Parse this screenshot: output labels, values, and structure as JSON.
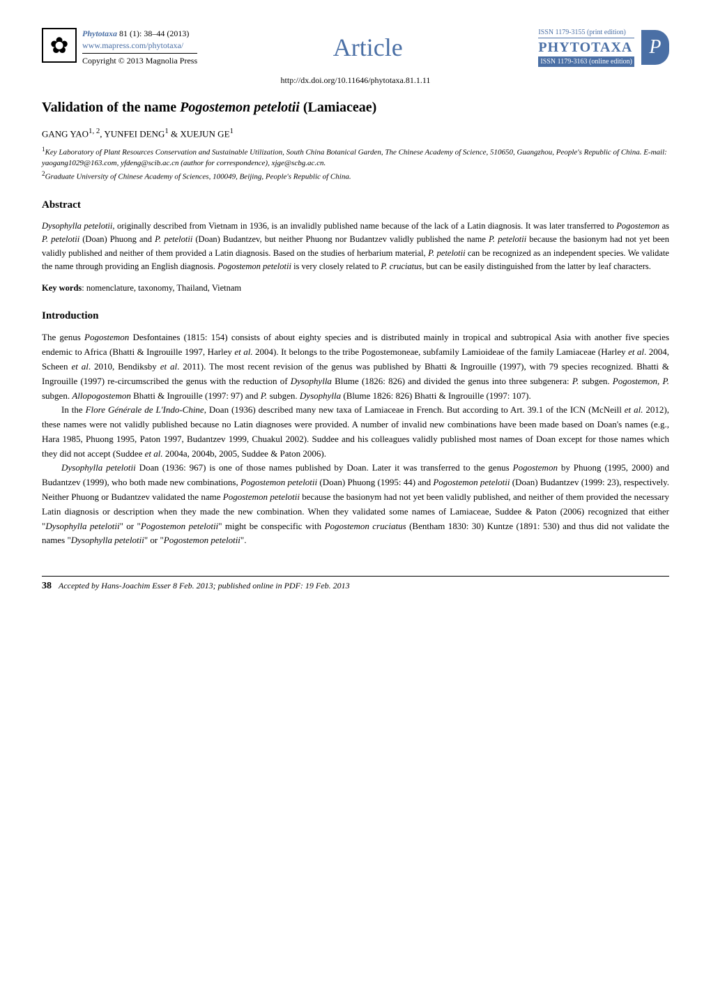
{
  "header": {
    "journal_name": "Phytotaxa",
    "issue_ref": "81 (1): 38–44 (2013)",
    "url": "www.mapress.com/phytotaxa/",
    "copyright": "Copyright © 2013 Magnolia Press",
    "article_label": "Article",
    "issn_print": "ISSN 1179-3155 (print edition)",
    "brand": "PHYTOTAXA",
    "issn_online": "ISSN 1179-3163 (online edition)",
    "doi": "http://dx.doi.org/10.11646/phytotaxa.81.1.11"
  },
  "title": {
    "prefix": "Validation of the name ",
    "species": "Pogostemon petelotii",
    "suffix": " (Lamiaceae)"
  },
  "authors": "GANG YAO1, 2, YUNFEI DENG1 & XUEJUN GE1",
  "affiliations": {
    "aff1": "1Key Laboratory of Plant Resources Conservation and Sustainable Utilization, South China Botanical Garden, The Chinese Academy of Science, 510650, Guangzhou, People's Republic of China. E-mail: yaogang1029@163.com, yfdeng@scib.ac.cn (author for correspondence), xjge@scbg.ac.cn.",
    "aff2": "2Graduate University of Chinese Academy of Sciences, 100049, Beijing, People's Republic of China."
  },
  "abstract": {
    "heading": "Abstract",
    "text_html": "<span class=\"species\">Dysophylla petelotii</span>, originally described from Vietnam in 1936, is an invalidly published name because of the lack of a Latin diagnosis. It was later transferred to <span class=\"species\">Pogostemon</span> as <span class=\"species\">P. petelotii</span> (Doan) Phuong and <span class=\"species\">P. petelotii</span> (Doan) Budantzev, but neither Phuong nor Budantzev validly published the name <span class=\"species\">P. petelotii</span> because the basionym had not yet been validly published and neither of them provided a Latin diagnosis. Based on the studies of herbarium material, <span class=\"species\">P. petelotii</span> can be recognized as an independent species. We validate the name through providing an English diagnosis. <span class=\"species\">Pogostemon petelotii</span> is very closely related to <span class=\"species\">P. cruciatus</span>, but can be easily distinguished from the latter by leaf characters.",
    "keywords_label": "Key words",
    "keywords_text": ": nomenclature, taxonomy, Thailand, Vietnam"
  },
  "introduction": {
    "heading": "Introduction",
    "para1_html": "The genus <span class=\"species\">Pogostemon</span> Desfontaines (1815: 154) consists of about eighty species and is distributed mainly in tropical and subtropical Asia with another five species endemic to Africa (Bhatti & Ingrouille 1997, Harley <span class=\"species\">et al.</span> 2004). It belongs to the tribe Pogostemoneae, subfamily Lamioideae of the family Lamiaceae (Harley <span class=\"species\">et al</span>. 2004, Scheen <span class=\"species\">et al</span>. 2010, Bendiksby <span class=\"species\">et al</span>. 2011). The most recent revision of the genus was published by Bhatti & Ingrouille (1997), with 79 species recognized. Bhatti & Ingrouille (1997) re-circumscribed the genus with the reduction of <span class=\"species\">Dysophylla</span> Blume (1826: 826) and divided the genus into three subgenera: <span class=\"species\">P.</span> subgen. <span class=\"species\">Pogostemon</span>, <span class=\"species\">P.</span> subgen. <span class=\"species\">Allopogostemon</span> Bhatti & Ingrouille (1997: 97) and <span class=\"species\">P.</span> subgen. <span class=\"species\">Dysophylla</span> (Blume 1826: 826) Bhatti & Ingrouille (1997: 107).",
    "para2_html": "In the <span class=\"species\">Flore Générale de L'Indo-Chine</span>, Doan (1936) described many new taxa of Lamiaceae in French. But according to Art. 39.1 of the ICN (McNeill <span class=\"species\">et al.</span> 2012), these names were not validly published because no Latin diagnoses were provided. A number of invalid new combinations have been made based on Doan's names (e.g., Hara 1985, Phuong 1995, Paton 1997, Budantzev 1999, Chuakul 2002). Suddee and his colleagues validly published most names of Doan except for those names which they did not accept (Suddee <span class=\"species\">et al.</span> 2004a, 2004b, 2005, Suddee & Paton 2006).",
    "para3_html": "<span class=\"species\">Dysophylla petelotii</span> Doan (1936: 967) is one of those names published by Doan. Later it was transferred to the genus <span class=\"species\">Pogostemon</span> by Phuong (1995, 2000) and Budantzev (1999), who both made new combinations, <span class=\"species\">Pogostemon petelotii</span> (Doan) Phuong (1995: 44) and <span class=\"species\">Pogostemon petelotii</span> (Doan) Budantzev (1999: 23), respectively. Neither Phuong or Budantzev validated the name <span class=\"species\">Pogostemon petelotii</span> because the basionym had not yet been validly published, and neither of them provided the necessary Latin diagnosis or description when they made the new combination. When they validated some names of Lamiaceae, Suddee & Paton (2006) recognized that either \"<span class=\"species\">Dysophylla petelotii</span>\" or \"<span class=\"species\">Pogostemon petelotii</span>\" might be conspecific with <span class=\"species\">Pogostemon cruciatus</span> (Bentham 1830: 30) Kuntze (1891: 530) and thus did not validate the names \"<span class=\"species\">Dysophylla petelotii</span>\" or \"<span class=\"species\">Pogostemon petelotii</span>\"."
  },
  "footer": {
    "page_num": "38",
    "text": "Accepted by Hans-Joachim Esser 8 Feb. 2013; published online in PDF: 19 Feb. 2013"
  },
  "colors": {
    "brand_blue": "#4a6fa5",
    "text": "#000000",
    "bg": "#ffffff"
  }
}
